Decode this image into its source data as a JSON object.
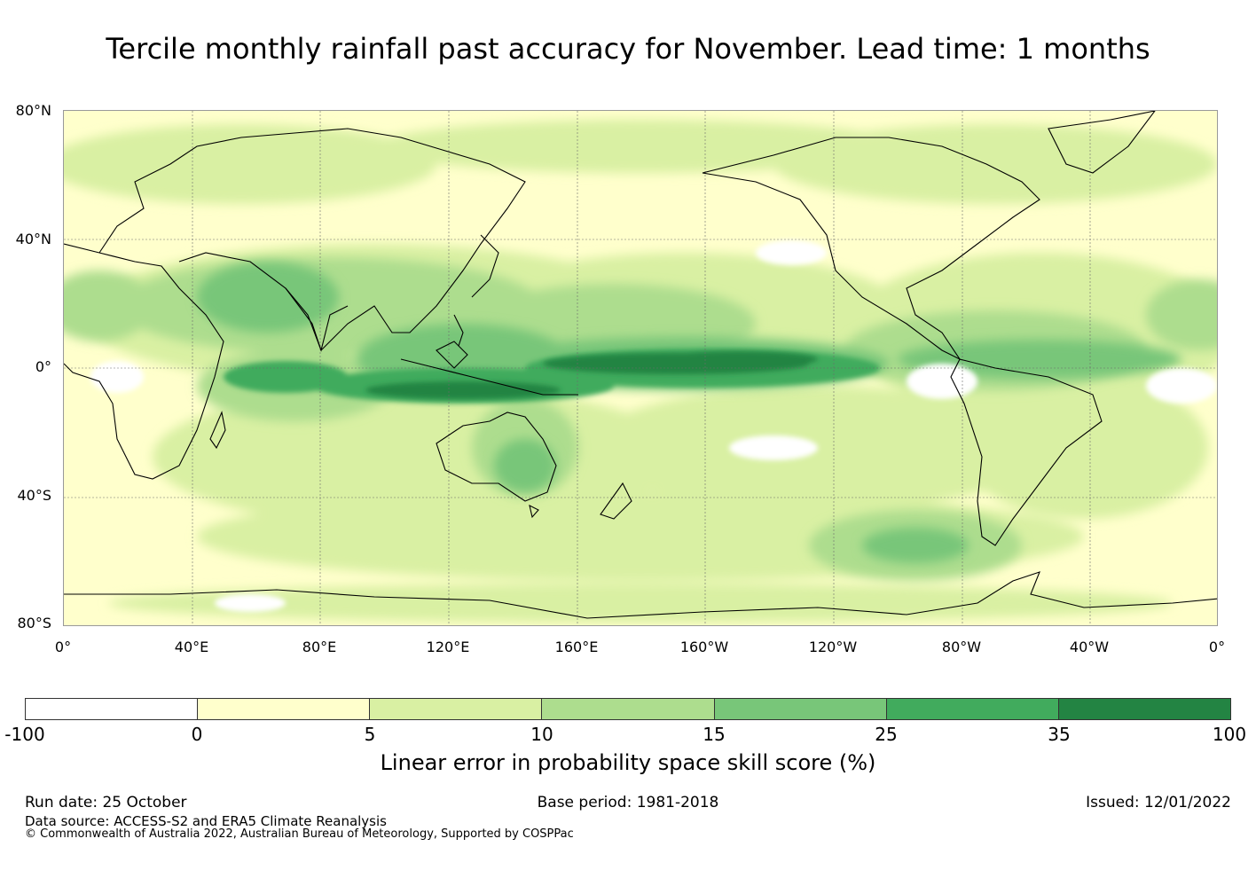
{
  "title": "Tercile monthly rainfall past accuracy for November. Lead time: 1 months",
  "map": {
    "lat_labels": [
      "80°N",
      "40°N",
      "0°",
      "40°S",
      "80°S"
    ],
    "lon_labels": [
      "0°",
      "40°E",
      "80°E",
      "120°E",
      "160°E",
      "160°W",
      "120°W",
      "80°W",
      "40°W",
      "0°"
    ]
  },
  "colorbar": {
    "colors": [
      "#ffffff",
      "#ffffcc",
      "#d9f0a3",
      "#addd8e",
      "#78c679",
      "#41ab5d",
      "#238443"
    ],
    "ticks": [
      "-100",
      "0",
      "5",
      "10",
      "15",
      "25",
      "35",
      "100"
    ],
    "label": "Linear error in probability space skill score (%)"
  },
  "footer": {
    "run_date": "Run date: 25 October",
    "base_period": "Base period: 1981-2018",
    "issued": "Issued: 12/01/2022",
    "data_source": "Data source: ACCESS-S2 and ERA5 Climate Reanalysis",
    "copyright": "© Commonwealth of Australia 2022, Australian Bureau of Meteorology, Supported by COSPPac"
  }
}
